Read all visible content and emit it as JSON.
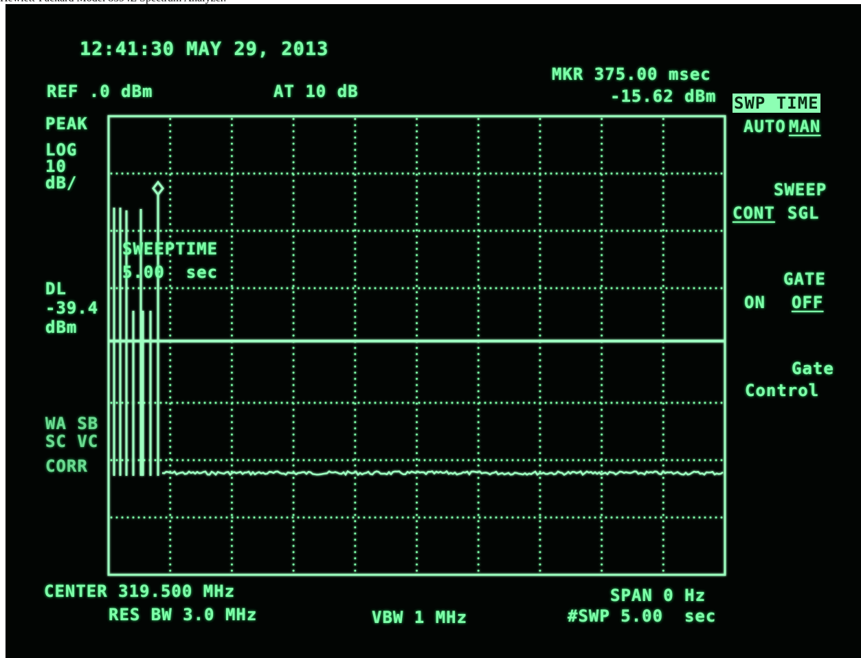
{
  "caption": "Hewlett-Packard Model 8594E Spectrum Analyzer.",
  "header": {
    "datetime": "12:41:30 MAY 29, 2013",
    "ref_level": "REF .0 dBm",
    "attenuation": "AT 10 dB",
    "marker_time": "MKR 375.00 msec",
    "marker_level": "-15.62 dBm"
  },
  "left_panel": {
    "detector": "PEAK",
    "scale_mode": "LOG",
    "scale_value": "10",
    "scale_unit": "dB/",
    "display_line_label": "DL",
    "display_line_value": "-39.4",
    "display_line_unit": "dBm",
    "indicator_1": "WA SB",
    "indicator_2": "SC VC",
    "indicator_3": "CORR"
  },
  "overlay": {
    "label": "SWEEPTIME",
    "value": "5.00  sec"
  },
  "softkeys": {
    "swp_time_title": "SWP TIME",
    "swp_time_auto": "AUTO",
    "swp_time_man": "MAN",
    "sweep_title": "SWEEP",
    "sweep_cont": "CONT",
    "sweep_sgl": "SGL",
    "gate_title": "GATE",
    "gate_on": "ON",
    "gate_off": "OFF",
    "gate_control_1": "Gate",
    "gate_control_2": "Control"
  },
  "footer": {
    "center": "CENTER 319.500 MHz",
    "span": "SPAN 0 Hz",
    "res_bw": "RES BW 3.0 MHz",
    "vbw": "VBW 1 MHz",
    "sweep": "#SWP 5.00  sec"
  },
  "colors": {
    "phosphor": "#7dffa8",
    "background": "#020503"
  }
}
